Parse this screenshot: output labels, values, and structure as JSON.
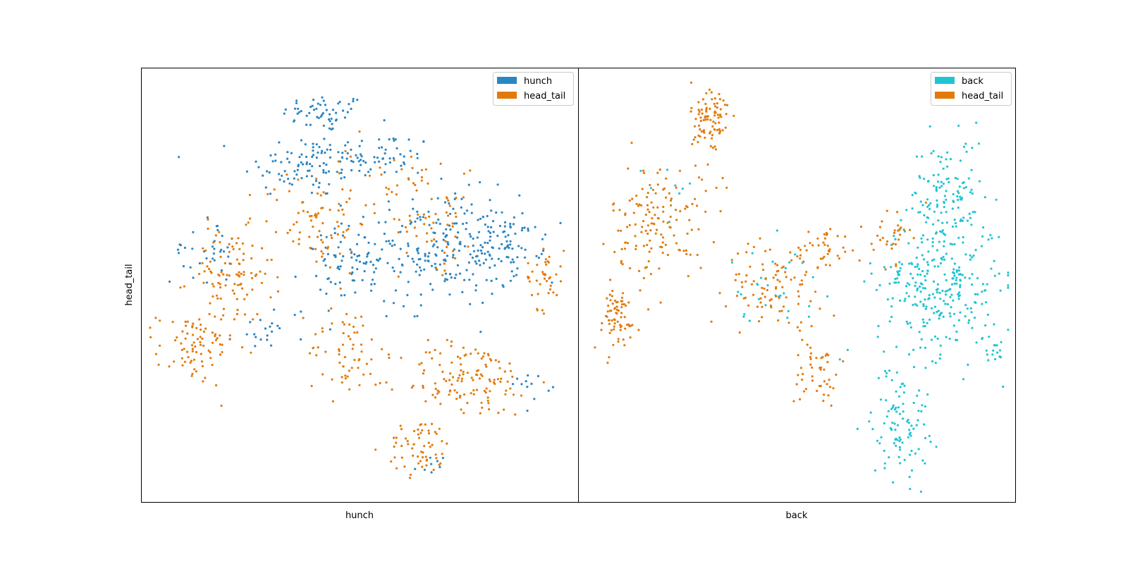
{
  "colors": {
    "hunch": "#2a86c2",
    "head_tail": "#e37b0a",
    "back": "#21c4d3"
  },
  "chart_data": [
    {
      "type": "scatter",
      "xlabel": "hunch",
      "ylabel": "head_tail",
      "xticks": [],
      "yticks": [],
      "grid": false,
      "legend_position": "top-right",
      "xlim": [
        0,
        100
      ],
      "ylim": [
        0,
        100
      ],
      "series": [
        {
          "name": "hunch",
          "color": "#2a86c2",
          "clusters": [
            {
              "cx": 42,
              "cy": 90,
              "rx": 9,
              "ry": 4,
              "n": 55
            },
            {
              "cx": 37,
              "cy": 78,
              "rx": 13,
              "ry": 7,
              "n": 90
            },
            {
              "cx": 55,
              "cy": 80,
              "rx": 11,
              "ry": 5,
              "n": 60
            },
            {
              "cx": 70,
              "cy": 58,
              "rx": 16,
              "ry": 12,
              "n": 230
            },
            {
              "cx": 48,
              "cy": 55,
              "rx": 10,
              "ry": 8,
              "n": 70
            },
            {
              "cx": 85,
              "cy": 60,
              "rx": 7,
              "ry": 6,
              "n": 55
            },
            {
              "cx": 14,
              "cy": 58,
              "rx": 7,
              "ry": 7,
              "n": 35
            },
            {
              "cx": 30,
              "cy": 40,
              "rx": 8,
              "ry": 5,
              "n": 22
            },
            {
              "cx": 90,
              "cy": 27,
              "rx": 4,
              "ry": 3,
              "n": 12
            },
            {
              "cx": 67,
              "cy": 8,
              "rx": 3,
              "ry": 2,
              "n": 8
            }
          ]
        },
        {
          "name": "head_tail",
          "color": "#e37b0a",
          "clusters": [
            {
              "cx": 12,
              "cy": 35,
              "rx": 8,
              "ry": 8,
              "n": 80
            },
            {
              "cx": 20,
              "cy": 52,
              "rx": 9,
              "ry": 10,
              "n": 100
            },
            {
              "cx": 40,
              "cy": 65,
              "rx": 11,
              "ry": 11,
              "n": 80
            },
            {
              "cx": 47,
              "cy": 35,
              "rx": 8,
              "ry": 10,
              "n": 60
            },
            {
              "cx": 75,
              "cy": 28,
              "rx": 14,
              "ry": 8,
              "n": 130
            },
            {
              "cx": 64,
              "cy": 12,
              "rx": 7,
              "ry": 6,
              "n": 60
            },
            {
              "cx": 68,
              "cy": 65,
              "rx": 8,
              "ry": 10,
              "n": 50
            },
            {
              "cx": 93,
              "cy": 52,
              "rx": 4,
              "ry": 7,
              "n": 40
            },
            {
              "cx": 58,
              "cy": 75,
              "rx": 10,
              "ry": 7,
              "n": 30
            }
          ]
        }
      ]
    },
    {
      "type": "scatter",
      "xlabel": "back",
      "ylabel": "",
      "xticks": [],
      "yticks": [],
      "grid": false,
      "legend_position": "top-right",
      "xlim": [
        0,
        100
      ],
      "ylim": [
        0,
        100
      ],
      "series": [
        {
          "name": "back",
          "color": "#21c4d3",
          "clusters": [
            {
              "cx": 83,
              "cy": 50,
              "rx": 13,
              "ry": 15,
              "n": 280
            },
            {
              "cx": 85,
              "cy": 70,
              "rx": 8,
              "ry": 13,
              "n": 120
            },
            {
              "cx": 74,
              "cy": 18,
              "rx": 6,
              "ry": 12,
              "n": 100
            },
            {
              "cx": 95,
              "cy": 35,
              "rx": 3,
              "ry": 3,
              "n": 18
            },
            {
              "cx": 45,
              "cy": 50,
              "rx": 10,
              "ry": 8,
              "n": 30
            },
            {
              "cx": 20,
              "cy": 75,
              "rx": 6,
              "ry": 8,
              "n": 8
            }
          ]
        },
        {
          "name": "head_tail",
          "color": "#e37b0a",
          "clusters": [
            {
              "cx": 30,
              "cy": 88,
              "rx": 4,
              "ry": 9,
              "n": 90
            },
            {
              "cx": 18,
              "cy": 65,
              "rx": 10,
              "ry": 12,
              "n": 140
            },
            {
              "cx": 8,
              "cy": 42,
              "rx": 5,
              "ry": 7,
              "n": 70
            },
            {
              "cx": 45,
              "cy": 50,
              "rx": 10,
              "ry": 9,
              "n": 90
            },
            {
              "cx": 56,
              "cy": 58,
              "rx": 6,
              "ry": 5,
              "n": 40
            },
            {
              "cx": 55,
              "cy": 30,
              "rx": 5,
              "ry": 8,
              "n": 45
            },
            {
              "cx": 72,
              "cy": 62,
              "rx": 4,
              "ry": 6,
              "n": 30
            }
          ]
        }
      ]
    }
  ]
}
